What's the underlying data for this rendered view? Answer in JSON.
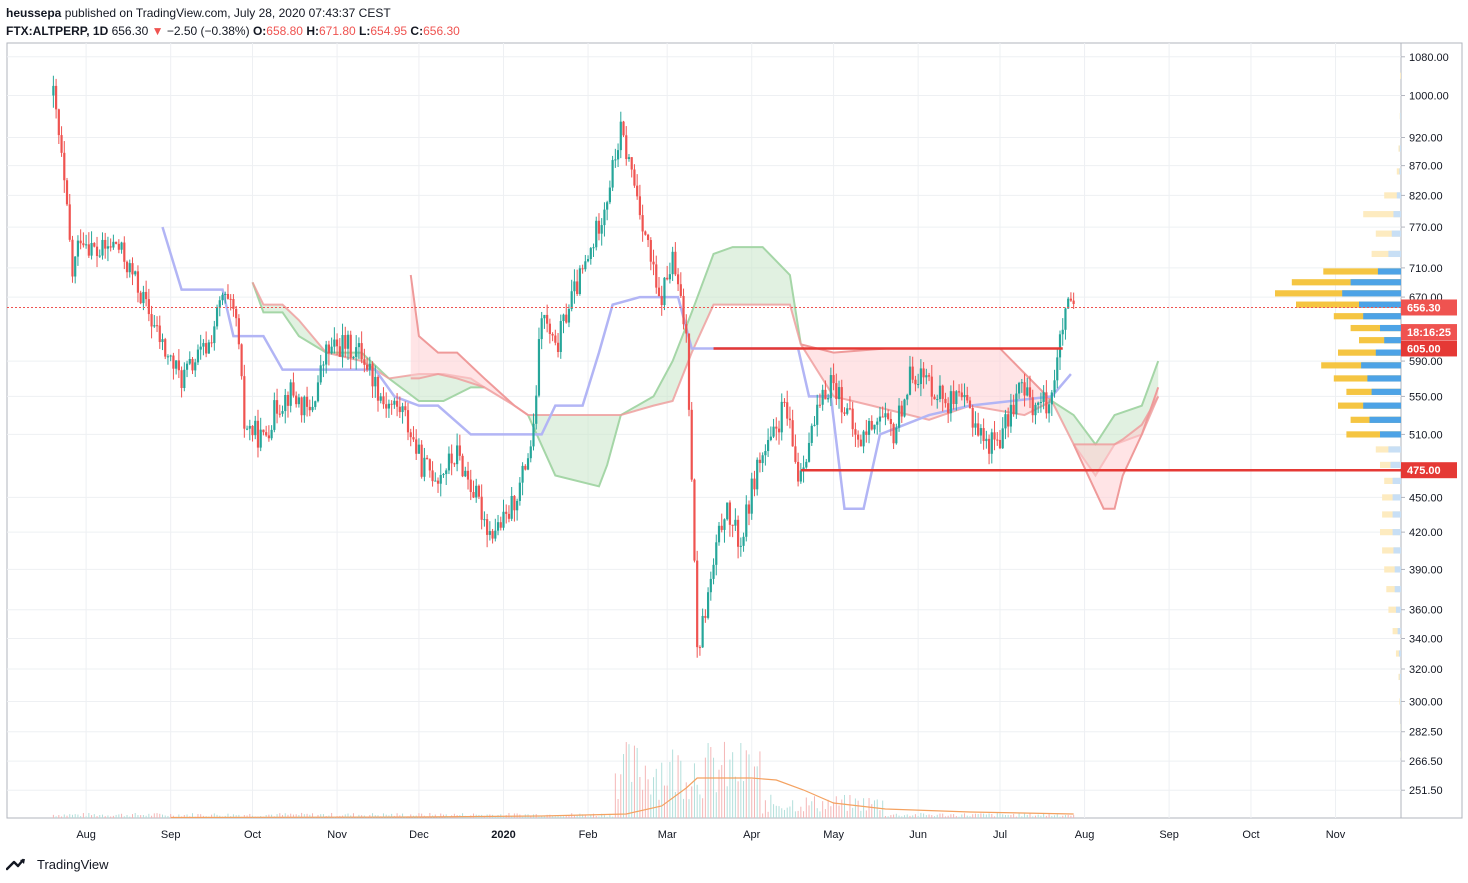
{
  "header": {
    "publisher_user": "heussepa",
    "publisher_rest": " published on TradingView.com, July 28, 2020 07:43:37 CEST",
    "symbol": "FTX:ALTPERP, 1D",
    "last": "656.30",
    "change_arrow": "▼",
    "change": "−2.50 (−0.38%)",
    "o_label": "O:",
    "o_value": "658.80",
    "h_label": "H:",
    "h_value": "671.80",
    "l_label": "L:",
    "l_value": "654.95",
    "c_label": "C:",
    "c_value": "656.30"
  },
  "footer": {
    "brand": "TradingView",
    "logo_icon": "tradingview-logo-icon"
  },
  "colors": {
    "up": "#26a69a",
    "down": "#ef5350",
    "cloud_bull": "#c8e6c9",
    "cloud_bear": "#ffcdd2",
    "kijun": "#b2b5f5",
    "volume_ma": "#f4a261",
    "vp_yellow": "#f5c542",
    "vp_blue": "#4da3e6",
    "sr_line": "#e53935"
  },
  "chart_data": {
    "type": "candlestick",
    "y_scale": "log",
    "ylim": [
      238,
      1110
    ],
    "y_ticks": [
      "1080.00",
      "1000.00",
      "920.00",
      "870.00",
      "820.00",
      "770.00",
      "710.00",
      "670.00",
      "590.00",
      "550.00",
      "510.00",
      "450.00",
      "420.00",
      "390.00",
      "360.00",
      "340.00",
      "320.00",
      "300.00",
      "282.50",
      "266.50",
      "251.50"
    ],
    "x_ticks": [
      "Aug",
      "Sep",
      "Oct",
      "Nov",
      "Dec",
      "2020",
      "Feb",
      "Mar",
      "Apr",
      "May",
      "Jun",
      "Jul",
      "Aug",
      "Sep",
      "Oct",
      "Nov"
    ],
    "x_tick_dates": [
      "2019-08-01",
      "2019-09-01",
      "2019-10-01",
      "2019-11-01",
      "2019-12-01",
      "2020-01-01",
      "2020-02-01",
      "2020-03-01",
      "2020-04-01",
      "2020-05-01",
      "2020-06-01",
      "2020-07-01",
      "2020-08-01",
      "2020-09-01",
      "2020-10-01",
      "2020-11-01"
    ],
    "x_range": [
      "2019-07-03",
      "2020-11-25"
    ],
    "price_labels": [
      {
        "text": "656.30",
        "value": 656.3,
        "color": "#ef5350"
      },
      {
        "text": "18:16:25",
        "value": 625,
        "color": "#ef5350"
      },
      {
        "text": "605.00",
        "value": 605,
        "color": "#e53935"
      },
      {
        "text": "475.00",
        "value": 475,
        "color": "#e53935"
      }
    ],
    "levels": [
      {
        "value": 605,
        "from": "2020-03-18",
        "to": "2020-07-24"
      },
      {
        "value": 475,
        "from": "2020-04-19",
        "to": "2020-11-25"
      }
    ],
    "current_price": 656.3,
    "close_path": [
      [
        "2019-07-20",
        1000
      ],
      [
        "2019-07-23",
        880
      ],
      [
        "2019-07-27",
        700
      ],
      [
        "2019-07-30",
        760
      ],
      [
        "2019-08-05",
        730
      ],
      [
        "2019-08-12",
        745
      ],
      [
        "2019-08-18",
        700
      ],
      [
        "2019-08-25",
        640
      ],
      [
        "2019-08-30",
        600
      ],
      [
        "2019-09-05",
        570
      ],
      [
        "2019-09-10",
        590
      ],
      [
        "2019-09-15",
        610
      ],
      [
        "2019-09-20",
        670
      ],
      [
        "2019-09-25",
        640
      ],
      [
        "2019-09-28",
        520
      ],
      [
        "2019-10-05",
        505
      ],
      [
        "2019-10-10",
        540
      ],
      [
        "2019-10-15",
        555
      ],
      [
        "2019-10-22",
        530
      ],
      [
        "2019-10-28",
        600
      ],
      [
        "2019-11-03",
        610
      ],
      [
        "2019-11-10",
        600
      ],
      [
        "2019-11-18",
        545
      ],
      [
        "2019-11-25",
        535
      ],
      [
        "2019-12-02",
        480
      ],
      [
        "2019-12-08",
        470
      ],
      [
        "2019-12-15",
        490
      ],
      [
        "2019-12-22",
        450
      ],
      [
        "2019-12-27",
        420
      ],
      [
        "2020-01-02",
        430
      ],
      [
        "2020-01-07",
        460
      ],
      [
        "2020-01-12",
        510
      ],
      [
        "2020-01-15",
        650
      ],
      [
        "2020-01-20",
        600
      ],
      [
        "2020-01-25",
        660
      ],
      [
        "2020-02-01",
        720
      ],
      [
        "2020-02-08",
        820
      ],
      [
        "2020-02-13",
        930
      ],
      [
        "2020-02-18",
        840
      ],
      [
        "2020-02-22",
        760
      ],
      [
        "2020-02-27",
        660
      ],
      [
        "2020-03-03",
        720
      ],
      [
        "2020-03-08",
        620
      ],
      [
        "2020-03-12",
        330
      ],
      [
        "2020-03-17",
        380
      ],
      [
        "2020-03-22",
        440
      ],
      [
        "2020-03-28",
        410
      ],
      [
        "2020-04-03",
        480
      ],
      [
        "2020-04-08",
        500
      ],
      [
        "2020-04-13",
        540
      ],
      [
        "2020-04-18",
        470
      ],
      [
        "2020-04-24",
        520
      ],
      [
        "2020-04-30",
        570
      ],
      [
        "2020-05-05",
        540
      ],
      [
        "2020-05-10",
        500
      ],
      [
        "2020-05-17",
        530
      ],
      [
        "2020-05-23",
        510
      ],
      [
        "2020-05-30",
        580
      ],
      [
        "2020-06-05",
        565
      ],
      [
        "2020-06-12",
        545
      ],
      [
        "2020-06-19",
        540
      ],
      [
        "2020-06-26",
        500
      ],
      [
        "2020-07-02",
        510
      ],
      [
        "2020-07-08",
        560
      ],
      [
        "2020-07-14",
        540
      ],
      [
        "2020-07-19",
        545
      ],
      [
        "2020-07-22",
        590
      ],
      [
        "2020-07-25",
        650
      ],
      [
        "2020-07-28",
        656.3
      ]
    ],
    "kijun": [
      [
        "2019-08-29",
        770
      ],
      [
        "2019-09-05",
        680
      ],
      [
        "2019-09-20",
        680
      ],
      [
        "2019-09-24",
        620
      ],
      [
        "2019-10-05",
        620
      ],
      [
        "2019-10-12",
        580
      ],
      [
        "2019-11-15",
        580
      ],
      [
        "2019-11-22",
        550
      ],
      [
        "2019-12-01",
        540
      ],
      [
        "2019-12-08",
        540
      ],
      [
        "2019-12-20",
        510
      ],
      [
        "2020-01-15",
        510
      ],
      [
        "2020-01-20",
        540
      ],
      [
        "2020-01-30",
        540
      ],
      [
        "2020-02-05",
        600
      ],
      [
        "2020-02-10",
        660
      ],
      [
        "2020-02-20",
        670
      ],
      [
        "2020-03-05",
        670
      ],
      [
        "2020-03-10",
        605
      ],
      [
        "2020-04-01",
        605
      ],
      [
        "2020-04-18",
        605
      ],
      [
        "2020-04-22",
        550
      ],
      [
        "2020-04-30",
        550
      ],
      [
        "2020-05-05",
        440
      ],
      [
        "2020-05-12",
        440
      ],
      [
        "2020-05-18",
        510
      ],
      [
        "2020-06-05",
        530
      ],
      [
        "2020-06-20",
        540
      ],
      [
        "2020-07-20",
        550
      ],
      [
        "2020-07-27",
        575
      ]
    ],
    "cloud_bull": [
      {
        "a": [
          [
            "2019-10-01",
            690
          ],
          [
            "2019-10-05",
            650
          ],
          [
            "2019-10-12",
            650
          ],
          [
            "2019-10-18",
            620
          ],
          [
            "2019-10-28",
            600
          ],
          [
            "2019-11-10",
            600
          ],
          [
            "2019-11-20",
            570
          ]
        ],
        "b": [
          [
            "2019-10-01",
            690
          ],
          [
            "2019-10-05",
            660
          ],
          [
            "2019-10-12",
            660
          ],
          [
            "2019-10-18",
            640
          ],
          [
            "2019-10-28",
            600
          ],
          [
            "2019-11-10",
            590
          ],
          [
            "2019-11-20",
            570
          ]
        ]
      },
      {
        "a": [
          [
            "2019-11-20",
            570
          ],
          [
            "2019-12-01",
            545
          ],
          [
            "2019-12-10",
            545
          ],
          [
            "2019-12-20",
            560
          ],
          [
            "2019-12-25",
            560
          ]
        ],
        "b": [
          [
            "2019-11-20",
            570
          ],
          [
            "2019-12-01",
            575
          ],
          [
            "2019-12-10",
            575
          ],
          [
            "2019-12-20",
            570
          ],
          [
            "2019-12-25",
            560
          ]
        ]
      },
      {
        "a": [
          [
            "2020-01-10",
            530
          ],
          [
            "2020-01-20",
            470
          ],
          [
            "2020-02-05",
            460
          ],
          [
            "2020-02-08",
            480
          ],
          [
            "2020-02-13",
            530
          ]
        ],
        "b": [
          [
            "2020-01-10",
            530
          ],
          [
            "2020-01-20",
            530
          ],
          [
            "2020-02-05",
            530
          ],
          [
            "2020-02-08",
            530
          ],
          [
            "2020-02-13",
            530
          ]
        ]
      },
      {
        "a": [
          [
            "2020-02-13",
            530
          ],
          [
            "2020-02-25",
            550
          ],
          [
            "2020-03-03",
            590
          ],
          [
            "2020-03-10",
            650
          ],
          [
            "2020-03-18",
            730
          ],
          [
            "2020-03-25",
            740
          ],
          [
            "2020-04-05",
            740
          ],
          [
            "2020-04-15",
            700
          ],
          [
            "2020-04-19",
            610
          ]
        ],
        "b": [
          [
            "2020-02-13",
            530
          ],
          [
            "2020-02-25",
            540
          ],
          [
            "2020-03-03",
            545
          ],
          [
            "2020-03-10",
            600
          ],
          [
            "2020-03-18",
            660
          ],
          [
            "2020-03-25",
            660
          ],
          [
            "2020-04-05",
            660
          ],
          [
            "2020-04-15",
            660
          ],
          [
            "2020-04-19",
            610
          ]
        ]
      },
      {
        "a": [
          [
            "2020-07-20",
            545
          ],
          [
            "2020-07-28",
            530
          ],
          [
            "2020-08-05",
            500
          ],
          [
            "2020-08-12",
            530
          ],
          [
            "2020-08-22",
            540
          ],
          [
            "2020-08-28",
            590
          ]
        ],
        "b": [
          [
            "2020-07-20",
            545
          ],
          [
            "2020-07-28",
            500
          ],
          [
            "2020-08-05",
            470
          ],
          [
            "2020-08-12",
            500
          ],
          [
            "2020-08-22",
            510
          ],
          [
            "2020-08-28",
            550
          ]
        ]
      }
    ],
    "cloud_bear": [
      {
        "a": [
          [
            "2019-11-28",
            700
          ],
          [
            "2019-12-01",
            620
          ],
          [
            "2019-12-08",
            600
          ],
          [
            "2019-12-15",
            600
          ],
          [
            "2019-12-25",
            570
          ],
          [
            "2020-01-05",
            540
          ],
          [
            "2020-01-10",
            530
          ]
        ],
        "b": [
          [
            "2019-11-28",
            570
          ],
          [
            "2019-12-01",
            570
          ],
          [
            "2019-12-08",
            575
          ],
          [
            "2019-12-15",
            570
          ],
          [
            "2019-12-25",
            560
          ],
          [
            "2020-01-05",
            540
          ],
          [
            "2020-01-10",
            530
          ]
        ]
      },
      {
        "a": [
          [
            "2020-04-19",
            610
          ],
          [
            "2020-05-01",
            600
          ],
          [
            "2020-05-20",
            605
          ],
          [
            "2020-06-10",
            605
          ],
          [
            "2020-07-01",
            605
          ],
          [
            "2020-07-20",
            545
          ]
        ],
        "b": [
          [
            "2020-04-19",
            610
          ],
          [
            "2020-05-01",
            550
          ],
          [
            "2020-05-15",
            540
          ],
          [
            "2020-06-05",
            525
          ],
          [
            "2020-06-20",
            540
          ],
          [
            "2020-07-10",
            530
          ],
          [
            "2020-07-20",
            545
          ]
        ]
      },
      {
        "a": [
          [
            "2020-07-28",
            500
          ],
          [
            "2020-08-08",
            440
          ],
          [
            "2020-08-12",
            440
          ],
          [
            "2020-08-15",
            470
          ],
          [
            "2020-08-22",
            510
          ],
          [
            "2020-08-28",
            560
          ]
        ],
        "b": [
          [
            "2020-07-28",
            500
          ],
          [
            "2020-08-08",
            500
          ],
          [
            "2020-08-12",
            500
          ],
          [
            "2020-08-15",
            505
          ],
          [
            "2020-08-22",
            520
          ],
          [
            "2020-08-28",
            550
          ]
        ]
      }
    ],
    "volume_profile": [
      {
        "price": 1040,
        "y": 2,
        "b": 0
      },
      {
        "price": 960,
        "y": 3,
        "b": 2
      },
      {
        "price": 900,
        "y": 6,
        "b": 3
      },
      {
        "price": 860,
        "y": 10,
        "b": 4
      },
      {
        "price": 820,
        "y": 40,
        "b": 10
      },
      {
        "price": 790,
        "y": 90,
        "b": 18
      },
      {
        "price": 760,
        "y": 60,
        "b": 22
      },
      {
        "price": 730,
        "y": 70,
        "b": 30
      },
      {
        "price": 705,
        "y": 185,
        "b": 55
      },
      {
        "price": 690,
        "y": 260,
        "b": 120
      },
      {
        "price": 675,
        "y": 300,
        "b": 140
      },
      {
        "price": 660,
        "y": 250,
        "b": 100
      },
      {
        "price": 645,
        "y": 160,
        "b": 90
      },
      {
        "price": 630,
        "y": 120,
        "b": 50
      },
      {
        "price": 615,
        "y": 100,
        "b": 40
      },
      {
        "price": 600,
        "y": 150,
        "b": 60
      },
      {
        "price": 585,
        "y": 190,
        "b": 95
      },
      {
        "price": 570,
        "y": 160,
        "b": 80
      },
      {
        "price": 555,
        "y": 130,
        "b": 70
      },
      {
        "price": 540,
        "y": 150,
        "b": 90
      },
      {
        "price": 525,
        "y": 120,
        "b": 75
      },
      {
        "price": 510,
        "y": 130,
        "b": 50
      },
      {
        "price": 495,
        "y": 60,
        "b": 30
      },
      {
        "price": 480,
        "y": 50,
        "b": 25
      },
      {
        "price": 465,
        "y": 40,
        "b": 20
      },
      {
        "price": 450,
        "y": 45,
        "b": 20
      },
      {
        "price": 435,
        "y": 45,
        "b": 20
      },
      {
        "price": 420,
        "y": 50,
        "b": 20
      },
      {
        "price": 405,
        "y": 45,
        "b": 18
      },
      {
        "price": 390,
        "y": 40,
        "b": 15
      },
      {
        "price": 375,
        "y": 35,
        "b": 15
      },
      {
        "price": 360,
        "y": 30,
        "b": 12
      },
      {
        "price": 345,
        "y": 20,
        "b": 8
      },
      {
        "price": 330,
        "y": 12,
        "b": 5
      },
      {
        "price": 315,
        "y": 6,
        "b": 3
      },
      {
        "price": 300,
        "y": 4,
        "b": 2
      },
      {
        "price": 285,
        "y": 2,
        "b": 1
      },
      {
        "price": 270,
        "y": 2,
        "b": 1
      }
    ],
    "volume_ma": [
      [
        "2019-09-01",
        0.5
      ],
      [
        "2019-12-01",
        1
      ],
      [
        "2020-01-15",
        2
      ],
      [
        "2020-02-15",
        4
      ],
      [
        "2020-02-28",
        12
      ],
      [
        "2020-03-08",
        30
      ],
      [
        "2020-03-12",
        40
      ],
      [
        "2020-04-01",
        40
      ],
      [
        "2020-04-10",
        38
      ],
      [
        "2020-04-20",
        28
      ],
      [
        "2020-05-01",
        15
      ],
      [
        "2020-05-20",
        9
      ],
      [
        "2020-06-20",
        6
      ],
      [
        "2020-07-28",
        4
      ]
    ]
  }
}
